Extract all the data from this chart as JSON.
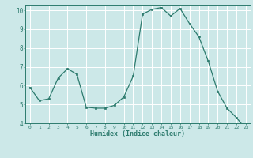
{
  "x": [
    0,
    1,
    2,
    3,
    4,
    5,
    6,
    7,
    8,
    9,
    10,
    11,
    12,
    13,
    14,
    15,
    16,
    17,
    18,
    19,
    20,
    21,
    22,
    23
  ],
  "y": [
    5.9,
    5.2,
    5.3,
    6.4,
    6.9,
    6.6,
    4.85,
    4.8,
    4.8,
    4.95,
    5.4,
    6.5,
    9.8,
    10.05,
    10.15,
    9.7,
    10.1,
    9.3,
    8.6,
    7.3,
    5.7,
    4.8,
    4.3,
    3.7
  ],
  "xlabel": "Humidex (Indice chaleur)",
  "ylim": [
    4,
    10.3
  ],
  "xlim": [
    -0.5,
    23.5
  ],
  "yticks": [
    4,
    5,
    6,
    7,
    8,
    9,
    10
  ],
  "xticks": [
    0,
    1,
    2,
    3,
    4,
    5,
    6,
    7,
    8,
    9,
    10,
    11,
    12,
    13,
    14,
    15,
    16,
    17,
    18,
    19,
    20,
    21,
    22,
    23
  ],
  "line_color": "#2d7b6e",
  "marker": "s",
  "marker_size": 2.0,
  "bg_color": "#cce8e8",
  "grid_color": "#ffffff",
  "axis_color": "#2d7b6e",
  "tick_color": "#2d7b6e",
  "xlabel_color": "#2d7b6e"
}
